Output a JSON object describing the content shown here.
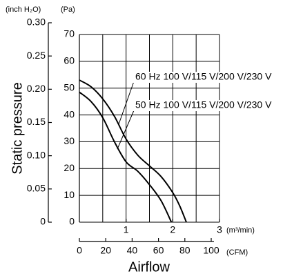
{
  "chart_data": {
    "type": "line",
    "y_unit_label": "(Pa)",
    "y2_unit_label": "(inch H₂O)",
    "x_unit_label": "(m³/min)",
    "x2_unit_label": "(CFM)",
    "ylabel": "Static pressure",
    "xlabel": "Airflow",
    "xlim": [
      0,
      3
    ],
    "xticks": [
      1,
      2,
      3
    ],
    "xgrid": [
      0.5,
      1,
      1.5,
      2,
      2.5,
      3
    ],
    "ylim": [
      0,
      70
    ],
    "yticks": [
      0,
      10,
      20,
      30,
      40,
      50,
      60,
      70
    ],
    "grid": true,
    "y2lim": [
      0,
      0.3
    ],
    "y2ticks": [
      0,
      {
        "value": 0.05,
        "label": "0.05"
      },
      {
        "value": 0.1,
        "label": "0.10"
      },
      {
        "value": 0.15,
        "label": "0.15"
      },
      {
        "value": 0.2,
        "label": "0.20"
      },
      {
        "value": 0.25,
        "label": "0.25"
      },
      {
        "value": 0.3,
        "label": "0.30"
      }
    ],
    "x2lim": [
      0,
      100
    ],
    "x2ticks": [
      0,
      20,
      40,
      60,
      80,
      100
    ],
    "series": [
      {
        "name": "60 Hz 100 V/115 V/200 V/230 V",
        "color": "#000000",
        "x": [
          0,
          0.25,
          0.5,
          0.75,
          1,
          1.25,
          1.5,
          1.75,
          2,
          2.15,
          2.29
        ],
        "values": [
          53,
          50.5,
          46,
          39.5,
          31,
          25,
          21,
          17,
          11,
          6,
          0
        ]
      },
      {
        "name": "50 Hz 100 V/115 V/200 V/230 V",
        "color": "#000000",
        "x": [
          0,
          0.25,
          0.5,
          0.75,
          1,
          1.25,
          1.5,
          1.75,
          1.97
        ],
        "values": [
          48.5,
          45,
          39,
          30,
          22.5,
          19,
          14,
          8,
          0
        ]
      }
    ]
  }
}
